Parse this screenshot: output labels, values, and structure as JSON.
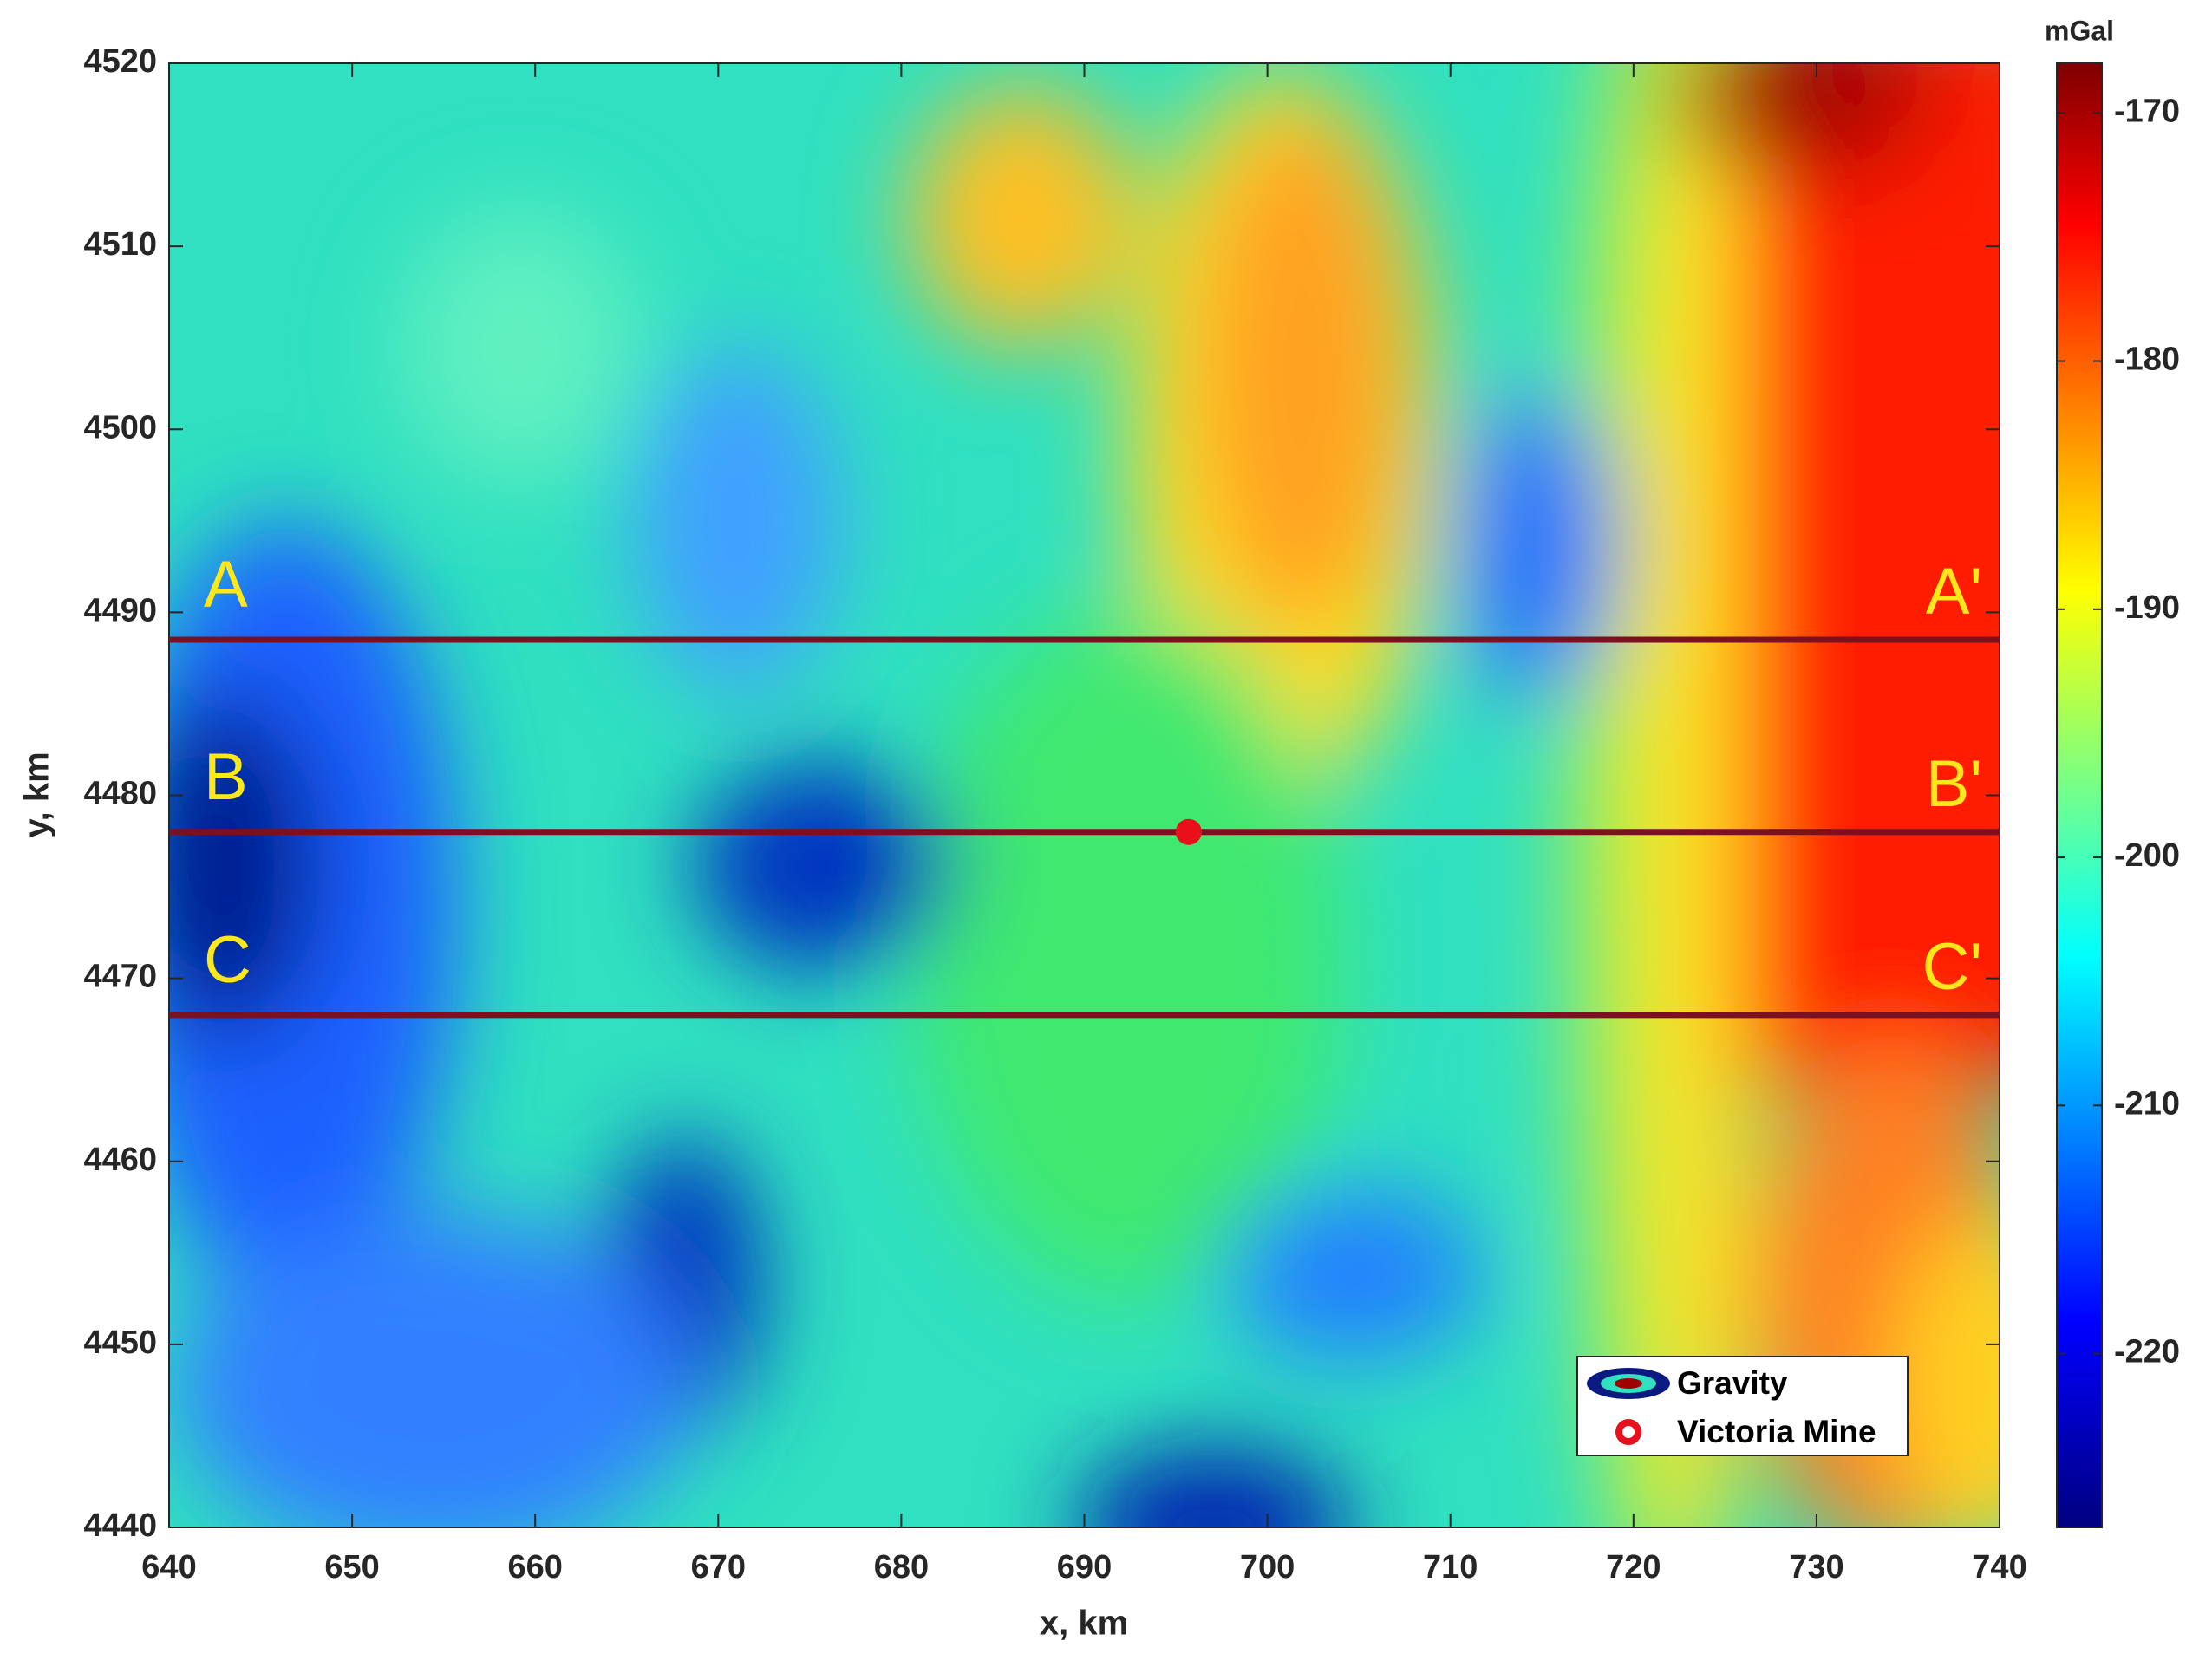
{
  "chart_data": {
    "type": "heatmap",
    "x_label": "x, km",
    "y_label": "y, km",
    "colorbar_label": "mGal",
    "xlim": [
      640,
      740
    ],
    "xticks": [
      640,
      650,
      660,
      670,
      680,
      690,
      700,
      710,
      720,
      730,
      740
    ],
    "ylim": [
      4440,
      4520
    ],
    "yticks": [
      4440,
      4450,
      4460,
      4470,
      4480,
      4490,
      4500,
      4510,
      4520
    ],
    "clim": [
      -227,
      -168
    ],
    "cticks": [
      -220,
      -210,
      -200,
      -190,
      -180,
      -170
    ],
    "profiles": [
      {
        "start": "A",
        "end": "A'",
        "y": 4488.5
      },
      {
        "start": "B",
        "end": "B'",
        "y": 4478
      },
      {
        "start": "C",
        "end": "C'",
        "y": 4468
      }
    ],
    "profile_color": "#7a1020",
    "mine": {
      "name": "Victoria Mine",
      "x": 695.7,
      "y": 4478,
      "color": "#e8101a"
    },
    "legend": [
      "Gravity",
      "Victoria Mine"
    ]
  }
}
